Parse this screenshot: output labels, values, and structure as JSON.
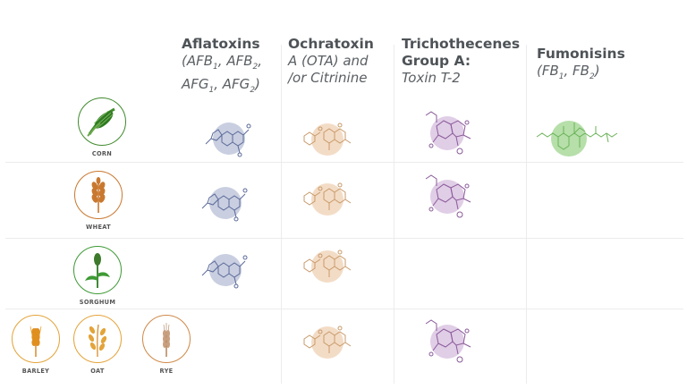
{
  "columns": [
    {
      "title": "Aflatoxins",
      "subtitle_html": "(AFB<sub>1</sub>, AFB<sub>2</sub>,<br>AFG<sub>1</sub>, AFG<sub>2</sub>)"
    },
    {
      "title": "Ochratoxin",
      "subtitle_html": "A (OTA) and<br>/or Citrinine"
    },
    {
      "title_html": "Trichothecenes<br>Group A:",
      "subtitle_html": "Toxin T-2"
    },
    {
      "title": "Fumonisins",
      "subtitle_html": "(FB<sub>1</sub>, FB<sub>2</sub>)"
    }
  ],
  "crops": [
    {
      "label": "CORN",
      "color": "#3f8a2c",
      "icon": "corn-icon"
    },
    {
      "label": "WHEAT",
      "color": "#c9782f",
      "icon": "wheat-icon"
    },
    {
      "label": "SORGHUM",
      "color": "#3e9a35",
      "icon": "sorghum-icon"
    },
    {
      "label": "BARLEY",
      "color": "#e3a43a",
      "icon": "barley-icon"
    },
    {
      "label": "OAT",
      "color": "#e3a43a",
      "icon": "oat-icon"
    },
    {
      "label": "RYE",
      "color": "#cf8a4a",
      "icon": "rye-icon"
    }
  ],
  "toxin_colors": {
    "aflatoxins": {
      "blob": "#c9cfe0",
      "line": "#5b6a9a"
    },
    "ochratoxin": {
      "blob": "#f3dcc6",
      "line": "#c89a6a"
    },
    "trichothecenes": {
      "blob": "#e0cde6",
      "line": "#8a5a9a"
    },
    "fumonisins": {
      "blob": "#b6dfa9",
      "line": "#6cb35a"
    }
  },
  "presence": {
    "corn": [
      "aflatoxins",
      "ochratoxin",
      "trichothecenes",
      "fumonisins"
    ],
    "wheat": [
      "aflatoxins",
      "ochratoxin",
      "trichothecenes"
    ],
    "sorghum": [
      "aflatoxins",
      "ochratoxin"
    ],
    "barley_oat_rye": [
      "ochratoxin",
      "trichothecenes"
    ]
  }
}
